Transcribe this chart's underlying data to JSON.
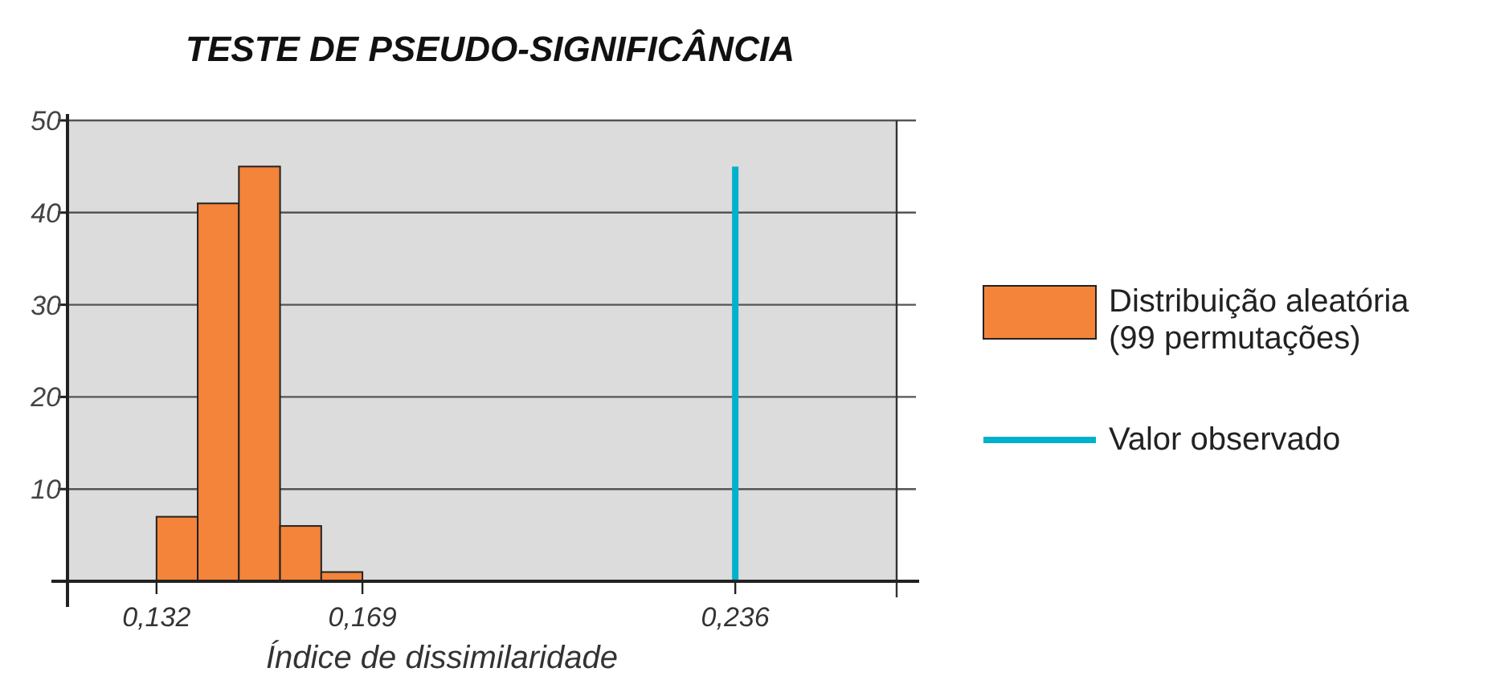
{
  "chart_data": {
    "type": "histogram",
    "title": "TESTE DE PSEUDO-SIGNIFICÂNCIA",
    "xlabel": "Índice de dissimilaridade",
    "bins": [
      0.132,
      0.1394,
      0.1468,
      0.1542,
      0.1616,
      0.169
    ],
    "series": [
      {
        "name": "Distribuição aleatória (99 permutações)",
        "color": "#f4843a",
        "values": [
          7,
          41,
          45,
          6,
          1
        ]
      },
      {
        "type": "line",
        "name": "Valor observado",
        "color": "#00b0cc",
        "x": [
          0.236,
          0.236
        ],
        "values": [
          0,
          45
        ]
      }
    ],
    "xlim": [
      0.116,
      0.265
    ],
    "xticks": [
      {
        "value": 0.132,
        "label": "0,132"
      },
      {
        "value": 0.169,
        "label": "0,169"
      },
      {
        "value": 0.236,
        "label": "0,236"
      }
    ],
    "ylim": [
      0,
      50
    ],
    "yticks": [
      10,
      20,
      30,
      40,
      50
    ],
    "grid": "y",
    "legend": "right"
  }
}
